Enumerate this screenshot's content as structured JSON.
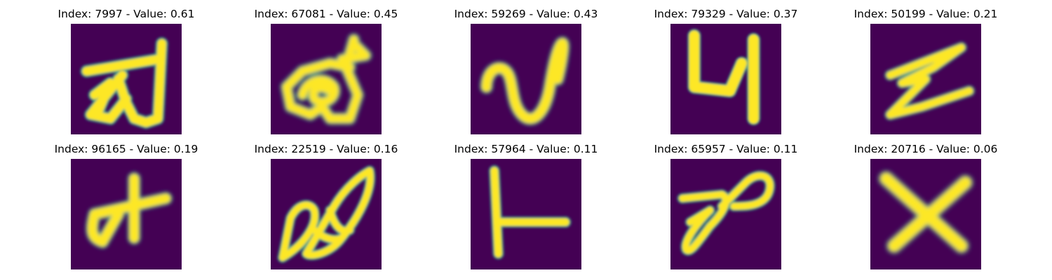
{
  "figure": {
    "colors": {
      "background": "#440154",
      "stroke_core": "#fde725",
      "stroke_mid": "#8fd744",
      "stroke_edge": "#2a9b8a",
      "page": "#ffffff"
    },
    "panels": [
      {
        "title": "Index: 7997 - Value: 0.61",
        "glyph": "stroke-glyph-a"
      },
      {
        "title": "Index: 67081 - Value: 0.45",
        "glyph": "stroke-glyph-b"
      },
      {
        "title": "Index: 59269 - Value: 0.43",
        "glyph": "stroke-glyph-c"
      },
      {
        "title": "Index: 79329 - Value: 0.37",
        "glyph": "stroke-glyph-d"
      },
      {
        "title": "Index: 50199 - Value: 0.21",
        "glyph": "stroke-glyph-e"
      },
      {
        "title": "Index: 96165 - Value: 0.19",
        "glyph": "stroke-glyph-f"
      },
      {
        "title": "Index: 22519 - Value: 0.16",
        "glyph": "stroke-glyph-g"
      },
      {
        "title": "Index: 57964 - Value: 0.11",
        "glyph": "stroke-glyph-h"
      },
      {
        "title": "Index: 65957 - Value: 0.11",
        "glyph": "stroke-glyph-i"
      },
      {
        "title": "Index: 20716 - Value: 0.06",
        "glyph": "stroke-glyph-j"
      }
    ]
  }
}
